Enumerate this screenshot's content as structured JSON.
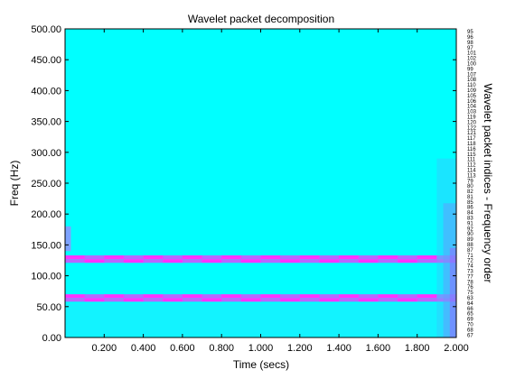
{
  "chart_data": {
    "type": "heatmap",
    "title": "Wavelet packet decomposition",
    "xlabel": "Time (secs)",
    "ylabel": "Freq (Hz)",
    "right_label": "Wavelet packet indices - Frequency order",
    "xlim": [
      0,
      2.0
    ],
    "ylim": [
      0,
      500
    ],
    "xticks": [
      "0.200",
      "0.400",
      "0.600",
      "0.800",
      "1.000",
      "1.200",
      "1.400",
      "1.600",
      "1.800",
      "2.000"
    ],
    "xtick_values": [
      0.2,
      0.4,
      0.6,
      0.8,
      1.0,
      1.2,
      1.4,
      1.6,
      1.8,
      2.0
    ],
    "yticks": [
      "0.00",
      "50.00",
      "100.00",
      "150.00",
      "200.00",
      "250.00",
      "300.00",
      "350.00",
      "400.00",
      "450.00",
      "500.00"
    ],
    "ytick_values": [
      0,
      50,
      100,
      150,
      200,
      250,
      300,
      350,
      400,
      450,
      500
    ],
    "packet_indices": [
      "95",
      "96",
      "98",
      "97",
      "101",
      "102",
      "100",
      "99",
      "107",
      "108",
      "110",
      "109",
      "105",
      "106",
      "104",
      "103",
      "119",
      "120",
      "122",
      "121",
      "117",
      "118",
      "116",
      "115",
      "111",
      "112",
      "114",
      "113",
      "79",
      "80",
      "82",
      "81",
      "85",
      "86",
      "84",
      "83",
      "91",
      "92",
      "90",
      "89",
      "88",
      "87",
      "71",
      "72",
      "74",
      "73",
      "77",
      "78",
      "76",
      "75",
      "63",
      "64",
      "66",
      "65",
      "69",
      "70",
      "68",
      "67"
    ],
    "background_color": "#00ffff",
    "components": [
      {
        "freq_low": 121,
        "freq_high": 133,
        "time_period": 0.1,
        "color_a": "#ff33ff",
        "color_b": "#b866ff"
      },
      {
        "freq_low": 58,
        "freq_high": 70,
        "time_period": 0.1,
        "color_a": "#ff33ff",
        "color_b": "#b866ff"
      }
    ],
    "low_freq_region": {
      "freq_high": 55,
      "color": "#33ddff"
    },
    "left_edge_patch": {
      "time_high": 0.03,
      "freq_low": 140,
      "freq_high": 180,
      "color": "#d066ff"
    },
    "right_edge_gradient": {
      "time_low": 1.9,
      "freq_high": 290,
      "colors": [
        "#33ccff",
        "#6699ff",
        "#9966ff"
      ]
    }
  }
}
